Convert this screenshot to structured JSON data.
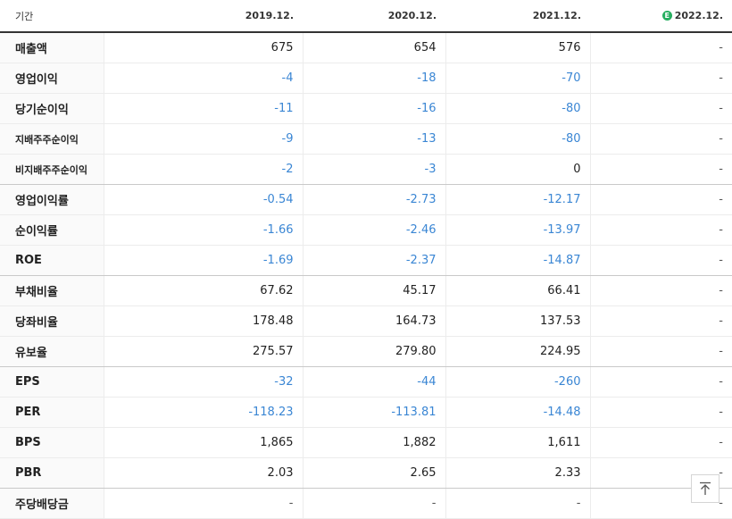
{
  "header": {
    "label": "기간",
    "periods": [
      "2019.12.",
      "2020.12.",
      "2021.12.",
      "2022.12."
    ],
    "estimate_badge": "E"
  },
  "rows": [
    {
      "label": "매출액",
      "values": [
        "675",
        "654",
        "576",
        "-"
      ]
    },
    {
      "label": "영업이익",
      "values": [
        "-4",
        "-18",
        "-70",
        "-"
      ]
    },
    {
      "label": "당기순이익",
      "values": [
        "-11",
        "-16",
        "-80",
        "-"
      ]
    },
    {
      "label": "지배주주순이익",
      "values": [
        "-9",
        "-13",
        "-80",
        "-"
      ]
    },
    {
      "label": "비지배주주순이익",
      "values": [
        "-2",
        "-3",
        "0",
        "-"
      ]
    },
    {
      "label": "영업이익률",
      "values": [
        "-0.54",
        "-2.73",
        "-12.17",
        "-"
      ]
    },
    {
      "label": "순이익률",
      "values": [
        "-1.66",
        "-2.46",
        "-13.97",
        "-"
      ]
    },
    {
      "label": "ROE",
      "values": [
        "-1.69",
        "-2.37",
        "-14.87",
        "-"
      ]
    },
    {
      "label": "부채비율",
      "values": [
        "67.62",
        "45.17",
        "66.41",
        "-"
      ]
    },
    {
      "label": "당좌비율",
      "values": [
        "178.48",
        "164.73",
        "137.53",
        "-"
      ]
    },
    {
      "label": "유보율",
      "values": [
        "275.57",
        "279.80",
        "224.95",
        "-"
      ]
    },
    {
      "label": "EPS",
      "values": [
        "-32",
        "-44",
        "-260",
        "-"
      ]
    },
    {
      "label": "PER",
      "values": [
        "-118.23",
        "-113.81",
        "-14.48",
        "-"
      ]
    },
    {
      "label": "BPS",
      "values": [
        "1,865",
        "1,882",
        "1,611",
        "-"
      ]
    },
    {
      "label": "PBR",
      "values": [
        "2.03",
        "2.65",
        "2.33",
        "-"
      ]
    },
    {
      "label": "주당배당금",
      "values": [
        "-",
        "-",
        "-",
        "-"
      ]
    }
  ],
  "colors": {
    "negative": "#3a86d4",
    "estimate": "#27ae60"
  },
  "icons": {
    "scroll_top": "arrow-up-to-top-icon"
  }
}
